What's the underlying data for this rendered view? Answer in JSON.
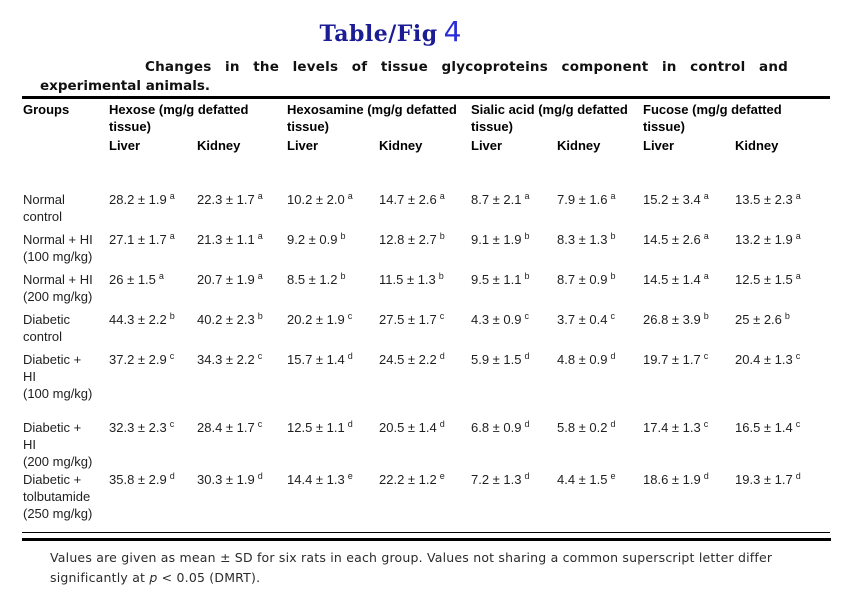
{
  "title": {
    "prefix": "Table/Fig",
    "number": "4"
  },
  "caption": {
    "line1": "Changes in the levels of tissue glycoproteins component in control and",
    "line2": "experimental animals."
  },
  "table": {
    "group_col_header": "Groups",
    "col_groups": [
      "Hexose (mg/g defatted tissue)",
      "Hexosamine (mg/g defatted tissue)",
      "Sialic acid (mg/g defatted tissue)",
      "Fucose  (mg/g defatted tissue)"
    ],
    "sub_headers": [
      "Liver",
      "Kidney"
    ],
    "rows": [
      {
        "group_lines": [
          "Normal",
          "control"
        ],
        "cells": [
          {
            "v": "28.2 ± 1.9",
            "s": "a"
          },
          {
            "v": "22.3 ± 1.7",
            "s": "a"
          },
          {
            "v": "10.2 ± 2.0",
            "s": "a"
          },
          {
            "v": "14.7 ± 2.6",
            "s": "a"
          },
          {
            "v": "8.7 ± 2.1",
            "s": "a"
          },
          {
            "v": "7.9 ± 1.6",
            "s": "a"
          },
          {
            "v": "15.2 ± 3.4",
            "s": "a"
          },
          {
            "v": "13.5 ± 2.3",
            "s": "a"
          }
        ]
      },
      {
        "group_lines": [
          "Normal + HI",
          "(100 mg/kg)"
        ],
        "cells": [
          {
            "v": "27.1 ± 1.7",
            "s": "a"
          },
          {
            "v": "21.3 ± 1.1",
            "s": "a"
          },
          {
            "v": "9.2 ± 0.9",
            "s": "b"
          },
          {
            "v": "12.8 ± 2.7",
            "s": "b"
          },
          {
            "v": "9.1 ± 1.9",
            "s": "b"
          },
          {
            "v": "8.3 ± 1.3",
            "s": "b"
          },
          {
            "v": "14.5 ± 2.6",
            "s": "a"
          },
          {
            "v": "13.2 ± 1.9",
            "s": "a"
          }
        ]
      },
      {
        "group_lines": [
          "Normal + HI",
          "(200 mg/kg)"
        ],
        "cells": [
          {
            "v": "26 ± 1.5",
            "s": "a"
          },
          {
            "v": "20.7 ± 1.9",
            "s": "a"
          },
          {
            "v": "8.5 ± 1.2",
            "s": "b"
          },
          {
            "v": "11.5 ± 1.3",
            "s": "b"
          },
          {
            "v": "9.5 ± 1.1",
            "s": "b"
          },
          {
            "v": "8.7 ± 0.9",
            "s": "b"
          },
          {
            "v": "14.5 ± 1.4",
            "s": "a"
          },
          {
            "v": "12.5 ± 1.5",
            "s": "a"
          }
        ]
      },
      {
        "group_lines": [
          "Diabetic",
          "control"
        ],
        "cells": [
          {
            "v": "44.3 ± 2.2",
            "s": "b"
          },
          {
            "v": "40.2 ± 2.3",
            "s": "b"
          },
          {
            "v": "20.2 ± 1.9",
            "s": "c"
          },
          {
            "v": "27.5 ± 1.7",
            "s": "c"
          },
          {
            "v": "4.3 ± 0.9",
            "s": "c"
          },
          {
            "v": "3.7 ± 0.4",
            "s": "c"
          },
          {
            "v": "26.8 ± 3.9",
            "s": "b"
          },
          {
            "v": "25 ± 2.6",
            "s": "b"
          }
        ]
      },
      {
        "group_lines": [
          "Diabetic +",
          "HI",
          "(100 mg/kg)"
        ],
        "cells": [
          {
            "v": "37.2 ± 2.9",
            "s": "c"
          },
          {
            "v": "34.3 ± 2.2",
            "s": "c"
          },
          {
            "v": "15.7 ± 1.4",
            "s": "d"
          },
          {
            "v": "24.5 ± 2.2",
            "s": "d"
          },
          {
            "v": "5.9 ± 1.5",
            "s": "d"
          },
          {
            "v": "4.8 ± 0.9",
            "s": "d"
          },
          {
            "v": "19.7 ± 1.7",
            "s": "c"
          },
          {
            "v": "20.4 ± 1.3",
            "s": "c"
          }
        ]
      },
      {
        "group_lines": [
          "Diabetic +",
          "HI",
          "(200 mg/kg)"
        ],
        "cells": [
          {
            "v": "32.3 ± 2.3",
            "s": "c"
          },
          {
            "v": "28.4 ± 1.7",
            "s": "c"
          },
          {
            "v": "12.5 ± 1.1",
            "s": "d"
          },
          {
            "v": "20.5 ± 1.4",
            "s": "d"
          },
          {
            "v": "6.8 ± 0.9",
            "s": "d"
          },
          {
            "v": "5.8 ± 0.2",
            "s": "d"
          },
          {
            "v": "17.4 ± 1.3",
            "s": "c"
          },
          {
            "v": "16.5 ± 1.4",
            "s": "c"
          }
        ]
      },
      {
        "group_lines": [
          "Diabetic +",
          "tolbutamide",
          "(250 mg/kg)"
        ],
        "cells": [
          {
            "v": "35.8 ± 2.9",
            "s": "d"
          },
          {
            "v": "30.3 ± 1.9",
            "s": "d"
          },
          {
            "v": "14.4 ± 1.3",
            "s": "e"
          },
          {
            "v": "22.2 ± 1.2",
            "s": "e"
          },
          {
            "v": "7.2 ± 1.3",
            "s": "d"
          },
          {
            "v": "4.4 ± 1.5",
            "s": "e"
          },
          {
            "v": "18.6 ± 1.9",
            "s": "d"
          },
          {
            "v": "19.3 ± 1.7",
            "s": "d"
          }
        ]
      }
    ]
  },
  "footnote": {
    "line1": "Values are given as mean ± SD for six rats in each group. Values not sharing a common superscript letter differ",
    "line2_pre": "significantly at ",
    "p_symbol": "p",
    "line2_post": " < 0.05 (DMRT)."
  }
}
